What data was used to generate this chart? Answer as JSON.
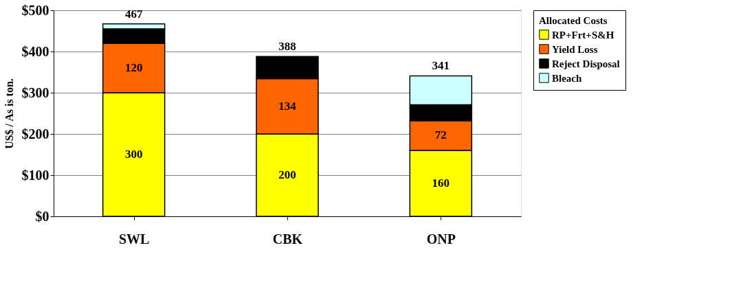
{
  "chart_data": {
    "type": "bar",
    "stacked": true,
    "ylabel": "US$ / As is ton.",
    "legend_title": "Allocated Costs",
    "legend": "right",
    "categories": [
      "SWL",
      "CBK",
      "ONP"
    ],
    "series": [
      {
        "name": "RP+Frt+S&H",
        "color": "#ffff00",
        "values": [
          300,
          200,
          160
        ],
        "value_labels": [
          "300",
          "200",
          "160"
        ]
      },
      {
        "name": "Yield Loss",
        "color": "#ff6600",
        "values": [
          120,
          134,
          72
        ],
        "value_labels": [
          "120",
          "134",
          "72"
        ]
      },
      {
        "name": "Reject Disposal",
        "color": "#000000",
        "values": [
          35,
          54,
          39
        ]
      },
      {
        "name": "Bleach",
        "color": "#ccffff",
        "values": [
          12,
          null,
          70
        ]
      }
    ],
    "totals": [
      "467",
      "388",
      "341"
    ],
    "ylim": [
      0,
      500
    ],
    "yticks": [
      {
        "value": 0,
        "label": "$0"
      },
      {
        "value": 100,
        "label": "$100"
      },
      {
        "value": 200,
        "label": "$200"
      },
      {
        "value": 300,
        "label": "$300"
      },
      {
        "value": 400,
        "label": "$400"
      },
      {
        "value": 500,
        "label": "$500"
      }
    ],
    "grid": "y"
  }
}
